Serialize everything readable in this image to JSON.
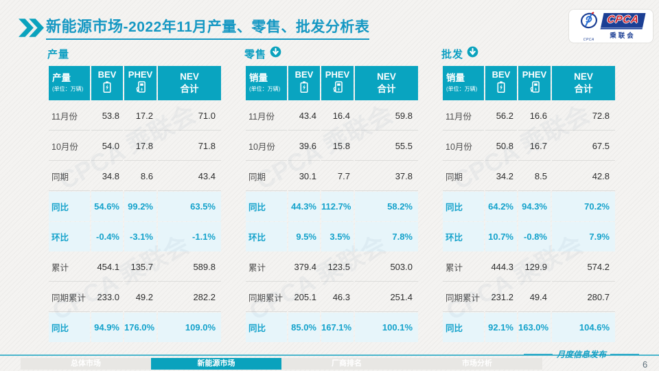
{
  "title": {
    "brand": "新能源市场",
    "rest": "-2022年11月产量、零售、批发分析表"
  },
  "logo": {
    "acronym": "CPCA",
    "name": "乘联会",
    "emblem_caption": "CPCA"
  },
  "watermark_text": "CPCA 乘联会",
  "tables": [
    {
      "section": "产量",
      "has_arrow": false,
      "header": {
        "label": "产量",
        "unit": "(单位：万辆)",
        "col_bev": "BEV",
        "col_phev": "PHEV",
        "col_nev": "NEV\n合计"
      },
      "rows": [
        {
          "label": "11月份",
          "values": [
            "53.8",
            "17.2",
            "71.0"
          ],
          "highlight": false
        },
        {
          "label": "10月份",
          "values": [
            "54.0",
            "17.8",
            "71.8"
          ],
          "highlight": false
        },
        {
          "label": "同期",
          "values": [
            "34.8",
            "8.6",
            "43.4"
          ],
          "highlight": false
        },
        {
          "label": "同比",
          "values": [
            "54.6%",
            "99.2%",
            "63.5%"
          ],
          "highlight": true
        },
        {
          "label": "环比",
          "values": [
            "-0.4%",
            "-3.1%",
            "-1.1%"
          ],
          "highlight": true
        },
        {
          "label": "累计",
          "values": [
            "454.1",
            "135.7",
            "589.8"
          ],
          "highlight": false
        },
        {
          "label": "同期累计",
          "values": [
            "233.0",
            "49.2",
            "282.2"
          ],
          "highlight": false
        },
        {
          "label": "同比",
          "values": [
            "94.9%",
            "176.0%",
            "109.0%"
          ],
          "highlight": true
        }
      ]
    },
    {
      "section": "零售",
      "has_arrow": true,
      "header": {
        "label": "销量",
        "unit": "(单位：万辆)",
        "col_bev": "BEV",
        "col_phev": "PHEV",
        "col_nev": "NEV\n合计"
      },
      "rows": [
        {
          "label": "11月份",
          "values": [
            "43.4",
            "16.4",
            "59.8"
          ],
          "highlight": false
        },
        {
          "label": "10月份",
          "values": [
            "39.6",
            "15.8",
            "55.5"
          ],
          "highlight": false
        },
        {
          "label": "同期",
          "values": [
            "30.1",
            "7.7",
            "37.8"
          ],
          "highlight": false
        },
        {
          "label": "同比",
          "values": [
            "44.3%",
            "112.7%",
            "58.2%"
          ],
          "highlight": true
        },
        {
          "label": "环比",
          "values": [
            "9.5%",
            "3.5%",
            "7.8%"
          ],
          "highlight": true
        },
        {
          "label": "累计",
          "values": [
            "379.4",
            "123.5",
            "503.0"
          ],
          "highlight": false
        },
        {
          "label": "同期累计",
          "values": [
            "205.1",
            "46.3",
            "251.4"
          ],
          "highlight": false
        },
        {
          "label": "同比",
          "values": [
            "85.0%",
            "167.1%",
            "100.1%"
          ],
          "highlight": true
        }
      ]
    },
    {
      "section": "批发",
      "has_arrow": true,
      "header": {
        "label": "销量",
        "unit": "(单位：万辆)",
        "col_bev": "BEV",
        "col_phev": "PHEV",
        "col_nev": "NEV\n合计"
      },
      "rows": [
        {
          "label": "11月份",
          "values": [
            "56.2",
            "16.6",
            "72.8"
          ],
          "highlight": false
        },
        {
          "label": "10月份",
          "values": [
            "50.8",
            "16.7",
            "67.5"
          ],
          "highlight": false
        },
        {
          "label": "同期",
          "values": [
            "34.2",
            "8.5",
            "42.8"
          ],
          "highlight": false
        },
        {
          "label": "同比",
          "values": [
            "64.2%",
            "94.3%",
            "70.2%"
          ],
          "highlight": true
        },
        {
          "label": "环比",
          "values": [
            "10.7%",
            "-0.8%",
            "7.9%"
          ],
          "highlight": true
        },
        {
          "label": "累计",
          "values": [
            "444.3",
            "129.9",
            "574.2"
          ],
          "highlight": false
        },
        {
          "label": "同期累计",
          "values": [
            "231.2",
            "49.4",
            "280.7"
          ],
          "highlight": false
        },
        {
          "label": "同比",
          "values": [
            "92.1%",
            "163.0%",
            "104.6%"
          ],
          "highlight": true
        }
      ]
    }
  ],
  "footer": {
    "tabs": [
      {
        "label": "总体市场",
        "active": false
      },
      {
        "label": "新能源市场",
        "active": true
      },
      {
        "label": "厂商排名",
        "active": false
      },
      {
        "label": "市场分析",
        "active": false
      }
    ],
    "right_note": "月度信息发布",
    "page": "6"
  },
  "colors": {
    "accent_teal": "#0aa2bd",
    "title_teal": "#1598c3",
    "header_bg": "#09a4c0",
    "highlight_row_bg": "#e7f5fa",
    "highlight_text": "#14a2cb",
    "logo_blue": "#1c3f94",
    "logo_red": "#d2232a"
  }
}
